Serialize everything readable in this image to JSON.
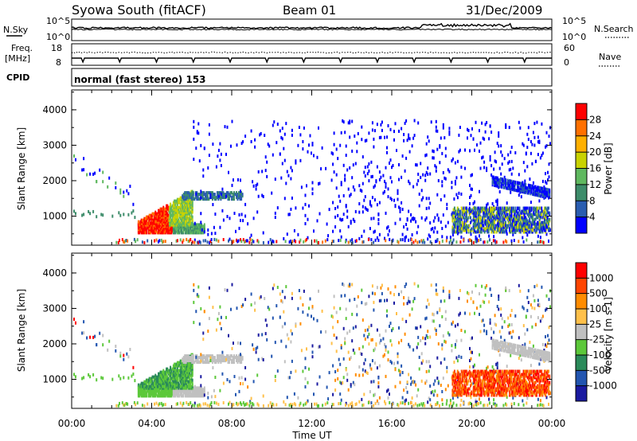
{
  "header": {
    "station": "Syowa South (fitACF)",
    "beam": "Beam 01",
    "date": "31/Dec/2009"
  },
  "summary_panels": {
    "nsky_label": "N.Sky",
    "nsearch_label": "N.Search",
    "nsky_ticks": [
      "10^5",
      "10^0"
    ],
    "nsearch_ticks": [
      "10^5",
      "10^0"
    ],
    "freq_label_1": "Freq.",
    "freq_label_2": "[MHz]",
    "freq_ticks": [
      "18",
      "8"
    ],
    "nave_label": "Nave",
    "nave_ticks": [
      "60",
      "0"
    ],
    "cpid_label": "CPID",
    "cpid_text": "normal (fast stereo) 153"
  },
  "colors": {
    "power_scale": [
      "#0000ff",
      "#2a5db0",
      "#3d8c6a",
      "#5fb85f",
      "#c8d200",
      "#ffb000",
      "#ff7000",
      "#ff0000"
    ],
    "velocity_scale": [
      "#ff0000",
      "#ff4500",
      "#ff8c00",
      "#ffc04a",
      "#c0c0c0",
      "#5cc83a",
      "#2a8a5a",
      "#2255b0",
      "#1a1aa0"
    ]
  },
  "chart_data": [
    {
      "type": "heatmap",
      "name": "power",
      "ylabel": "Slant Range [km]",
      "yticks": [
        "1000",
        "2000",
        "3000",
        "4000"
      ],
      "ylim": [
        180,
        4560
      ],
      "xlim_hours": [
        0,
        24
      ],
      "colorbar_label": "Power [dB]",
      "colorbar_ticks": [
        "4",
        "8",
        "12",
        "16",
        "20",
        "24",
        "28"
      ],
      "colorbar_range": [
        0,
        32
      ],
      "features": [
        {
          "desc": "ground scatter band",
          "t_start": 3.3,
          "t_end": 6.5,
          "range": [
            550,
            750
          ],
          "value": 26
        },
        {
          "desc": "ionospheric echoes",
          "t_start": 3.3,
          "t_end": 5.8,
          "range": [
            700,
            1700
          ],
          "value": 22
        },
        {
          "desc": "scattered echoes",
          "t_start": 6,
          "t_end": 24,
          "range": [
            300,
            3800
          ],
          "value": 4
        },
        {
          "desc": "late ionospheric band",
          "t_start": 21,
          "t_end": 24,
          "range": [
            900,
            2100
          ],
          "value": 10
        }
      ]
    },
    {
      "type": "heatmap",
      "name": "velocity",
      "ylabel": "Slant Range [km]",
      "xlabel": "Time UT",
      "xticks": [
        "00:00",
        "04:00",
        "08:00",
        "12:00",
        "16:00",
        "20:00",
        "00:00"
      ],
      "yticks": [
        "1000",
        "2000",
        "3000",
        "4000"
      ],
      "ylim": [
        180,
        4560
      ],
      "xlim_hours": [
        0,
        24
      ],
      "colorbar_label": "Velocity [m s-1]",
      "colorbar_ticks": [
        "1000",
        "500",
        "100",
        "25",
        "-25",
        "-100",
        "-500",
        "-1000"
      ]
    }
  ]
}
